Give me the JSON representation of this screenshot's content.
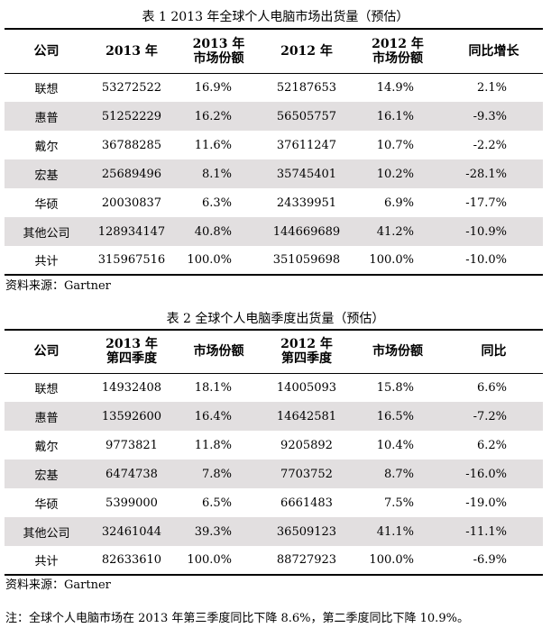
{
  "table1": {
    "caption": "表 1  2013 年全球个人电脑市场出货量（预估）",
    "headers": {
      "company": "公司",
      "y2013": "2013 年",
      "share2013_l1": "2013 年",
      "share2013_l2": "市场份额",
      "y2012": "2012 年",
      "share2012_l1": "2012 年",
      "share2012_l2": "市场份额",
      "yoy": "同比增长"
    },
    "rows": [
      {
        "company": "联想",
        "v2013": "53272522",
        "s2013": "16.9%",
        "v2012": "52187653",
        "s2012": "14.9%",
        "yoy": "2.1%"
      },
      {
        "company": "惠普",
        "v2013": "51252229",
        "s2013": "16.2%",
        "v2012": "56505757",
        "s2012": "16.1%",
        "yoy": "-9.3%"
      },
      {
        "company": "戴尔",
        "v2013": "36788285",
        "s2013": "11.6%",
        "v2012": "37611247",
        "s2012": "10.7%",
        "yoy": "-2.2%"
      },
      {
        "company": "宏基",
        "v2013": "25689496",
        "s2013": "8.1%",
        "v2012": "35745401",
        "s2012": "10.2%",
        "yoy": "-28.1%"
      },
      {
        "company": "华硕",
        "v2013": "20030837",
        "s2013": "6.3%",
        "v2012": "24339951",
        "s2012": "6.9%",
        "yoy": "-17.7%"
      },
      {
        "company": "其他公司",
        "v2013": "128934147",
        "s2013": "40.8%",
        "v2012": "144669689",
        "s2012": "41.2%",
        "yoy": "-10.9%"
      },
      {
        "company": "共计",
        "v2013": "315967516",
        "s2013": "100.0%",
        "v2012": "351059698",
        "s2012": "100.0%",
        "yoy": "-10.0%"
      }
    ],
    "source": "资料来源：Gartner"
  },
  "table2": {
    "caption": "表 2 全球个人电脑季度出货量（预估）",
    "headers": {
      "company": "公司",
      "q2013_l1": "2013 年",
      "q2013_l2": "第四季度",
      "share2013": "市场份额",
      "q2012_l1": "2012 年",
      "q2012_l2": "第四季度",
      "share2012": "市场份额",
      "yoy": "同比"
    },
    "rows": [
      {
        "company": "联想",
        "v2013": "14932408",
        "s2013": "18.1%",
        "v2012": "14005093",
        "s2012": "15.8%",
        "yoy": "6.6%"
      },
      {
        "company": "惠普",
        "v2013": "13592600",
        "s2013": "16.4%",
        "v2012": "14642581",
        "s2012": "16.5%",
        "yoy": "-7.2%"
      },
      {
        "company": "戴尔",
        "v2013": "9773821",
        "s2013": "11.8%",
        "v2012": "9205892",
        "s2012": "10.4%",
        "yoy": "6.2%"
      },
      {
        "company": "宏基",
        "v2013": "6474738",
        "s2013": "7.8%",
        "v2012": "7703752",
        "s2012": "8.7%",
        "yoy": "-16.0%"
      },
      {
        "company": "华硕",
        "v2013": "5399000",
        "s2013": "6.5%",
        "v2012": "6661483",
        "s2012": "7.5%",
        "yoy": "-19.0%"
      },
      {
        "company": "其他公司",
        "v2013": "32461044",
        "s2013": "39.3%",
        "v2012": "36509123",
        "s2012": "41.1%",
        "yoy": "-11.1%"
      },
      {
        "company": "共计",
        "v2013": "82633610",
        "s2013": "100.0%",
        "v2012": "88727923",
        "s2012": "100.0%",
        "yoy": "-6.9%"
      }
    ],
    "source": "资料来源：Gartner"
  },
  "note": "注：全球个人电脑市场在 2013 年第三季度同比下降 8.6%，第二季度同比下降 10.9%。"
}
